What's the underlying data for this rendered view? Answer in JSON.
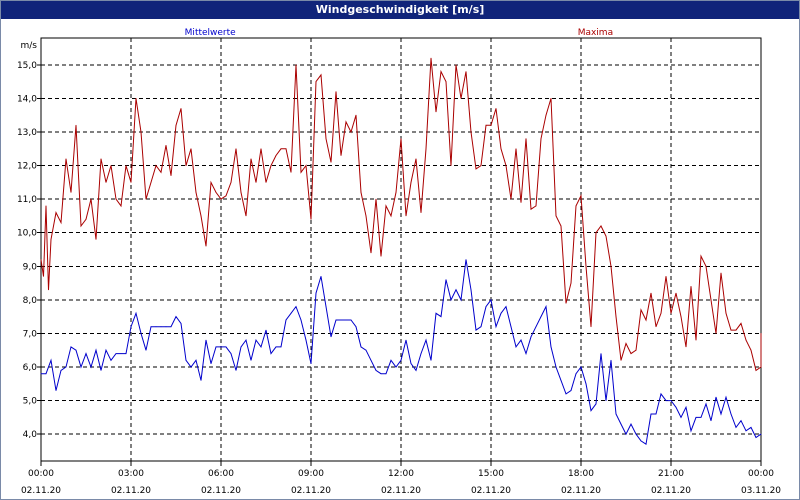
{
  "window": {
    "title": "Windgeschwindigkeit [m/s]"
  },
  "chart_data": {
    "type": "line",
    "title": "Windgeschwindigkeit [m/s]",
    "ylabel": "m/s",
    "xlabel": "",
    "ylim": [
      3.2,
      15.8
    ],
    "xlim": [
      "02.11.20 00:00",
      "03.11.20 00:00"
    ],
    "grid": true,
    "y_ticks": [
      "4,0",
      "5,0",
      "6,0",
      "7,0",
      "8,0",
      "9,0",
      "10,0",
      "11,0",
      "12,0",
      "13,0",
      "14,0",
      "15,0"
    ],
    "x_ticks": [
      {
        "time": "00:00",
        "date": "02.11.20"
      },
      {
        "time": "03:00",
        "date": "02.11.20"
      },
      {
        "time": "06:00",
        "date": "02.11.20"
      },
      {
        "time": "09:00",
        "date": "02.11.20"
      },
      {
        "time": "12:00",
        "date": "02.11.20"
      },
      {
        "time": "15:00",
        "date": "02.11.20"
      },
      {
        "time": "18:00",
        "date": "02.11.20"
      },
      {
        "time": "21:00",
        "date": "02.11.20"
      },
      {
        "time": "00:00",
        "date": "03.11.20"
      }
    ],
    "series": [
      {
        "name": "Mittelwerte",
        "color": "#0000cc",
        "points": [
          [
            "00:00",
            5.8
          ],
          [
            "00:10",
            5.8
          ],
          [
            "00:20",
            6.2
          ],
          [
            "00:30",
            5.3
          ],
          [
            "00:40",
            5.9
          ],
          [
            "00:50",
            6.0
          ],
          [
            "01:00",
            6.6
          ],
          [
            "01:10",
            6.5
          ],
          [
            "01:20",
            6.0
          ],
          [
            "01:30",
            6.4
          ],
          [
            "01:40",
            6.0
          ],
          [
            "01:50",
            6.5
          ],
          [
            "02:00",
            5.9
          ],
          [
            "02:10",
            6.5
          ],
          [
            "02:20",
            6.2
          ],
          [
            "02:30",
            6.4
          ],
          [
            "02:40",
            6.4
          ],
          [
            "02:50",
            6.4
          ],
          [
            "03:00",
            7.2
          ],
          [
            "03:10",
            7.6
          ],
          [
            "03:20",
            7.0
          ],
          [
            "03:30",
            6.5
          ],
          [
            "03:40",
            7.2
          ],
          [
            "03:50",
            7.2
          ],
          [
            "04:00",
            7.2
          ],
          [
            "04:10",
            7.2
          ],
          [
            "04:20",
            7.2
          ],
          [
            "04:30",
            7.5
          ],
          [
            "04:40",
            7.3
          ],
          [
            "04:50",
            6.2
          ],
          [
            "05:00",
            6.0
          ],
          [
            "05:10",
            6.2
          ],
          [
            "05:20",
            5.6
          ],
          [
            "05:30",
            6.8
          ],
          [
            "05:40",
            6.1
          ],
          [
            "05:50",
            6.6
          ],
          [
            "06:00",
            6.6
          ],
          [
            "06:10",
            6.6
          ],
          [
            "06:20",
            6.4
          ],
          [
            "06:30",
            5.9
          ],
          [
            "06:40",
            6.6
          ],
          [
            "06:50",
            6.8
          ],
          [
            "07:00",
            6.2
          ],
          [
            "07:10",
            6.8
          ],
          [
            "07:20",
            6.6
          ],
          [
            "07:30",
            7.1
          ],
          [
            "07:40",
            6.4
          ],
          [
            "07:50",
            6.6
          ],
          [
            "08:00",
            6.6
          ],
          [
            "08:10",
            7.4
          ],
          [
            "08:20",
            7.6
          ],
          [
            "08:30",
            7.8
          ],
          [
            "08:40",
            7.4
          ],
          [
            "08:50",
            6.8
          ],
          [
            "09:00",
            6.1
          ],
          [
            "09:10",
            8.2
          ],
          [
            "09:20",
            8.7
          ],
          [
            "09:30",
            7.8
          ],
          [
            "09:40",
            6.9
          ],
          [
            "09:50",
            7.4
          ],
          [
            "10:00",
            7.4
          ],
          [
            "10:10",
            7.4
          ],
          [
            "10:20",
            7.4
          ],
          [
            "10:30",
            7.2
          ],
          [
            "10:40",
            6.6
          ],
          [
            "10:50",
            6.5
          ],
          [
            "11:00",
            6.2
          ],
          [
            "11:10",
            5.9
          ],
          [
            "11:20",
            5.8
          ],
          [
            "11:30",
            5.8
          ],
          [
            "11:40",
            6.2
          ],
          [
            "11:50",
            6.0
          ],
          [
            "12:00",
            6.2
          ],
          [
            "12:10",
            6.8
          ],
          [
            "12:20",
            6.1
          ],
          [
            "12:30",
            5.9
          ],
          [
            "12:40",
            6.4
          ],
          [
            "12:50",
            6.8
          ],
          [
            "13:00",
            6.2
          ],
          [
            "13:10",
            7.6
          ],
          [
            "13:20",
            7.5
          ],
          [
            "13:30",
            8.6
          ],
          [
            "13:40",
            8.0
          ],
          [
            "13:50",
            8.3
          ],
          [
            "14:00",
            8.0
          ],
          [
            "14:10",
            9.2
          ],
          [
            "14:20",
            8.3
          ],
          [
            "14:30",
            7.1
          ],
          [
            "14:40",
            7.2
          ],
          [
            "14:50",
            7.8
          ],
          [
            "15:00",
            8.0
          ],
          [
            "15:10",
            7.2
          ],
          [
            "15:20",
            7.6
          ],
          [
            "15:30",
            7.8
          ],
          [
            "15:40",
            7.2
          ],
          [
            "15:50",
            6.6
          ],
          [
            "16:00",
            6.8
          ],
          [
            "16:10",
            6.4
          ],
          [
            "16:20",
            6.9
          ],
          [
            "16:30",
            7.2
          ],
          [
            "16:40",
            7.5
          ],
          [
            "16:50",
            7.8
          ],
          [
            "17:00",
            6.6
          ],
          [
            "17:10",
            6.0
          ],
          [
            "17:20",
            5.6
          ],
          [
            "17:30",
            5.2
          ],
          [
            "17:40",
            5.3
          ],
          [
            "17:50",
            5.8
          ],
          [
            "18:00",
            6.0
          ],
          [
            "18:10",
            5.5
          ],
          [
            "18:20",
            4.7
          ],
          [
            "18:30",
            4.9
          ],
          [
            "18:40",
            6.4
          ],
          [
            "18:50",
            5.0
          ],
          [
            "19:00",
            6.2
          ],
          [
            "19:10",
            4.6
          ],
          [
            "19:20",
            4.3
          ],
          [
            "19:30",
            4.0
          ],
          [
            "19:40",
            4.3
          ],
          [
            "19:50",
            4.0
          ],
          [
            "20:00",
            3.8
          ],
          [
            "20:10",
            3.7
          ],
          [
            "20:20",
            4.6
          ],
          [
            "20:30",
            4.6
          ],
          [
            "20:40",
            5.2
          ],
          [
            "20:50",
            5.0
          ],
          [
            "21:00",
            5.0
          ],
          [
            "21:10",
            4.8
          ],
          [
            "21:20",
            4.5
          ],
          [
            "21:30",
            4.8
          ],
          [
            "21:40",
            4.1
          ],
          [
            "21:50",
            4.5
          ],
          [
            "22:00",
            4.5
          ],
          [
            "22:10",
            4.9
          ],
          [
            "22:20",
            4.4
          ],
          [
            "22:30",
            5.1
          ],
          [
            "22:40",
            4.6
          ],
          [
            "22:50",
            5.1
          ],
          [
            "23:00",
            4.6
          ],
          [
            "23:10",
            4.2
          ],
          [
            "23:20",
            4.4
          ],
          [
            "23:30",
            4.1
          ],
          [
            "23:40",
            4.2
          ],
          [
            "23:50",
            3.9
          ],
          [
            "24:00",
            4.0
          ]
        ]
      },
      {
        "name": "Maxima",
        "color": "#aa0000",
        "points": [
          [
            "00:00",
            9.2
          ],
          [
            "00:05",
            8.7
          ],
          [
            "00:10",
            10.8
          ],
          [
            "00:15",
            8.3
          ],
          [
            "00:20",
            9.8
          ],
          [
            "00:30",
            10.6
          ],
          [
            "00:40",
            10.3
          ],
          [
            "00:50",
            12.2
          ],
          [
            "01:00",
            11.2
          ],
          [
            "01:10",
            13.2
          ],
          [
            "01:20",
            10.2
          ],
          [
            "01:30",
            10.4
          ],
          [
            "01:40",
            11.0
          ],
          [
            "01:50",
            9.8
          ],
          [
            "02:00",
            12.2
          ],
          [
            "02:10",
            11.5
          ],
          [
            "02:20",
            12.0
          ],
          [
            "02:30",
            11.0
          ],
          [
            "02:40",
            10.8
          ],
          [
            "02:50",
            12.0
          ],
          [
            "03:00",
            11.5
          ],
          [
            "03:10",
            14.0
          ],
          [
            "03:20",
            13.0
          ],
          [
            "03:30",
            11.0
          ],
          [
            "03:40",
            11.5
          ],
          [
            "03:50",
            12.0
          ],
          [
            "04:00",
            11.8
          ],
          [
            "04:10",
            12.6
          ],
          [
            "04:20",
            11.7
          ],
          [
            "04:30",
            13.2
          ],
          [
            "04:40",
            13.7
          ],
          [
            "04:50",
            12.0
          ],
          [
            "05:00",
            12.5
          ],
          [
            "05:10",
            11.2
          ],
          [
            "05:20",
            10.5
          ],
          [
            "05:30",
            9.6
          ],
          [
            "05:40",
            11.5
          ],
          [
            "05:50",
            11.2
          ],
          [
            "06:00",
            11.0
          ],
          [
            "06:10",
            11.1
          ],
          [
            "06:20",
            11.5
          ],
          [
            "06:30",
            12.5
          ],
          [
            "06:40",
            11.2
          ],
          [
            "06:50",
            10.5
          ],
          [
            "07:00",
            12.2
          ],
          [
            "07:10",
            11.5
          ],
          [
            "07:20",
            12.5
          ],
          [
            "07:30",
            11.5
          ],
          [
            "07:40",
            12.0
          ],
          [
            "07:50",
            12.3
          ],
          [
            "08:00",
            12.5
          ],
          [
            "08:10",
            12.5
          ],
          [
            "08:20",
            11.8
          ],
          [
            "08:30",
            15.0
          ],
          [
            "08:40",
            11.8
          ],
          [
            "08:50",
            12.0
          ],
          [
            "09:00",
            10.4
          ],
          [
            "09:10",
            14.5
          ],
          [
            "09:20",
            14.7
          ],
          [
            "09:30",
            12.8
          ],
          [
            "09:40",
            12.1
          ],
          [
            "09:50",
            14.2
          ],
          [
            "10:00",
            12.3
          ],
          [
            "10:10",
            13.3
          ],
          [
            "10:20",
            13.0
          ],
          [
            "10:30",
            13.5
          ],
          [
            "10:40",
            11.2
          ],
          [
            "10:50",
            10.5
          ],
          [
            "11:00",
            9.4
          ],
          [
            "11:10",
            11.0
          ],
          [
            "11:20",
            9.3
          ],
          [
            "11:30",
            10.8
          ],
          [
            "11:40",
            10.5
          ],
          [
            "11:50",
            11.2
          ],
          [
            "12:00",
            12.8
          ],
          [
            "12:10",
            10.5
          ],
          [
            "12:20",
            11.5
          ],
          [
            "12:30",
            12.2
          ],
          [
            "12:40",
            10.6
          ],
          [
            "12:50",
            12.5
          ],
          [
            "13:00",
            15.2
          ],
          [
            "13:10",
            13.6
          ],
          [
            "13:20",
            14.8
          ],
          [
            "13:30",
            14.5
          ],
          [
            "13:40",
            12.0
          ],
          [
            "13:50",
            15.0
          ],
          [
            "14:00",
            14.0
          ],
          [
            "14:10",
            14.8
          ],
          [
            "14:20",
            13.0
          ],
          [
            "14:30",
            11.9
          ],
          [
            "14:40",
            12.0
          ],
          [
            "14:50",
            13.2
          ],
          [
            "15:00",
            13.2
          ],
          [
            "15:10",
            13.7
          ],
          [
            "15:20",
            12.5
          ],
          [
            "15:30",
            12.0
          ],
          [
            "15:40",
            11.0
          ],
          [
            "15:50",
            12.5
          ],
          [
            "16:00",
            10.9
          ],
          [
            "16:10",
            12.8
          ],
          [
            "16:20",
            10.7
          ],
          [
            "16:30",
            10.8
          ],
          [
            "16:40",
            12.8
          ],
          [
            "16:50",
            13.5
          ],
          [
            "17:00",
            14.0
          ],
          [
            "17:10",
            10.5
          ],
          [
            "17:20",
            10.2
          ],
          [
            "17:30",
            7.9
          ],
          [
            "17:40",
            8.5
          ],
          [
            "17:50",
            10.8
          ],
          [
            "18:00",
            11.1
          ],
          [
            "18:10",
            9.0
          ],
          [
            "18:20",
            7.2
          ],
          [
            "18:30",
            10.0
          ],
          [
            "18:40",
            10.2
          ],
          [
            "18:50",
            9.9
          ],
          [
            "19:00",
            9.0
          ],
          [
            "19:10",
            7.5
          ],
          [
            "19:20",
            6.2
          ],
          [
            "19:30",
            6.7
          ],
          [
            "19:40",
            6.4
          ],
          [
            "19:50",
            6.5
          ],
          [
            "20:00",
            7.7
          ],
          [
            "20:10",
            7.4
          ],
          [
            "20:20",
            8.2
          ],
          [
            "20:30",
            7.2
          ],
          [
            "20:40",
            7.6
          ],
          [
            "20:50",
            8.7
          ],
          [
            "21:00",
            7.6
          ],
          [
            "21:10",
            8.2
          ],
          [
            "21:20",
            7.5
          ],
          [
            "21:30",
            6.6
          ],
          [
            "21:40",
            8.4
          ],
          [
            "21:50",
            6.8
          ],
          [
            "22:00",
            9.3
          ],
          [
            "22:10",
            9.0
          ],
          [
            "22:20",
            8.0
          ],
          [
            "22:30",
            7.0
          ],
          [
            "22:40",
            8.8
          ],
          [
            "22:50",
            7.6
          ],
          [
            "23:00",
            7.1
          ],
          [
            "23:10",
            7.1
          ],
          [
            "23:20",
            7.3
          ],
          [
            "23:30",
            6.8
          ],
          [
            "23:40",
            6.5
          ],
          [
            "23:50",
            5.9
          ],
          [
            "24:00",
            6.0
          ],
          [
            "24:00",
            7.0
          ]
        ]
      }
    ]
  }
}
